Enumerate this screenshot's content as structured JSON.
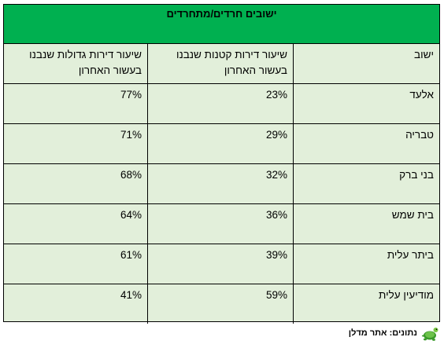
{
  "title": "ישובים חרדים/מתחרדים",
  "headers": {
    "town": "ישוב",
    "small": "שיעור דירות קטנות שנבנו בעשור האחרון",
    "large": "שיעור דירות גדולות שנבנו בעשור האחרון"
  },
  "rows": [
    {
      "town": "אלעד",
      "small": "23%",
      "large": "77%"
    },
    {
      "town": "טבריה",
      "small": "29%",
      "large": "71%"
    },
    {
      "town": "בני ברק",
      "small": "32%",
      "large": "68%"
    },
    {
      "town": "בית שמש",
      "small": "36%",
      "large": "64%"
    },
    {
      "town": "ביתר עלית",
      "small": "39%",
      "large": "61%"
    },
    {
      "town": "מודיעין עלית",
      "small": "59%",
      "large": "41%"
    }
  ],
  "footer": {
    "source": "נתונים: אתר מדלן",
    "logo_icon": "turtle-icon"
  },
  "colors": {
    "header_bg": "#00b050",
    "cell_bg": "#e2efda"
  }
}
